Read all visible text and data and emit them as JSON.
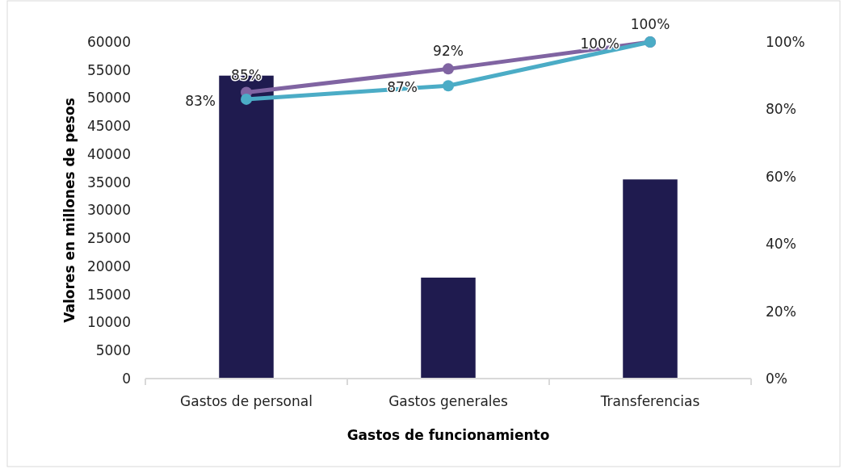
{
  "chart_data": {
    "type": "bar",
    "xlabel": "Gastos de funcionamiento",
    "ylabel": "Valores en millones de pesos",
    "categories": [
      "Gastos de personal",
      "Gastos generales",
      "Transferencias"
    ],
    "series": [
      {
        "color": "#1f1b4f",
        "values": [
          54000,
          18000,
          35500
        ]
      },
      {
        "type": "line",
        "axis": "y2",
        "color": "#8064a2",
        "values": [
          85,
          92,
          100
        ],
        "value_labels": [
          "85%",
          "92%",
          "100%"
        ]
      },
      {
        "type": "line",
        "axis": "y2",
        "color": "#4bacc6",
        "values": [
          83,
          87,
          100
        ],
        "value_labels": [
          "83%",
          "87%",
          "100%"
        ]
      }
    ],
    "ylim": [
      0,
      60000
    ],
    "yticks": [
      0,
      5000,
      10000,
      15000,
      20000,
      25000,
      30000,
      35000,
      40000,
      45000,
      50000,
      55000,
      60000
    ],
    "y2lim": [
      0,
      100
    ],
    "y2ticks": [
      {
        "value": 0,
        "label": "0%"
      },
      {
        "value": 20,
        "label": "20%"
      },
      {
        "value": 40,
        "label": "40%"
      },
      {
        "value": 60,
        "label": "60%"
      },
      {
        "value": 80,
        "label": "80%"
      },
      {
        "value": 100,
        "label": "100%"
      }
    ],
    "grid": false,
    "marker": "circle"
  }
}
